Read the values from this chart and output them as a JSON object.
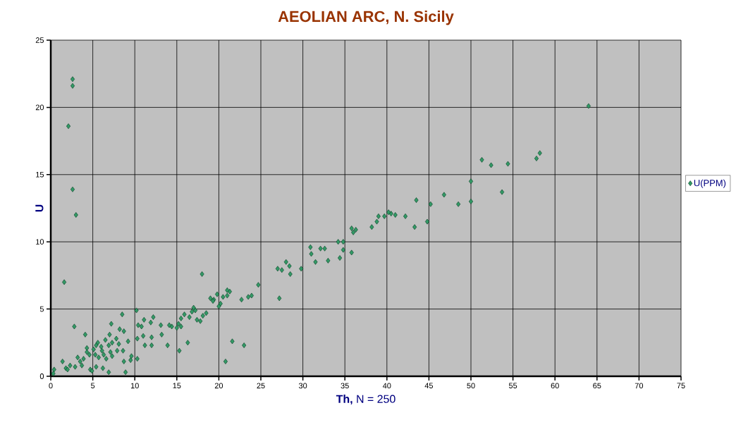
{
  "chart_data": {
    "type": "scatter",
    "title": "AEOLIAN ARC, N. Sicily",
    "xlabel": "**Th,**  N = 250",
    "ylabel": "U",
    "xlim": [
      0,
      75
    ],
    "xticks": [
      0,
      5,
      10,
      15,
      20,
      25,
      30,
      35,
      40,
      45,
      50,
      55,
      60,
      65,
      70,
      75
    ],
    "ylim": [
      0,
      25
    ],
    "yticks": [
      0,
      5,
      10,
      15,
      20,
      25
    ],
    "grid": true,
    "legend": "right",
    "marker": "diamond",
    "series": [
      {
        "name": "U(PPM)",
        "color": "#339966",
        "x": [
          2.6,
          2.6,
          2.1,
          2.6,
          3.0,
          1.6,
          2.8,
          64.0,
          58.2,
          57.8,
          54.4,
          51.3,
          52.4,
          53.7,
          50.0,
          50.0,
          48.5,
          46.8,
          45.2,
          44.8,
          43.5,
          43.3,
          42.2,
          41.0,
          40.5,
          40.2,
          39.7,
          39.0,
          38.8,
          38.2,
          36.3,
          36.0,
          35.8,
          35.8,
          34.8,
          34.8,
          34.4,
          34.2,
          33.0,
          32.6,
          32.1,
          31.5,
          31.0,
          30.9,
          29.8,
          28.5,
          28.4,
          28.0,
          27.5,
          27.0,
          27.2,
          24.7,
          23.9,
          23.5,
          22.7,
          21.3,
          21.0,
          21.0,
          20.5,
          20.2,
          20.0,
          19.8,
          19.4,
          19.0,
          19.3,
          18.5,
          18.1,
          18.0,
          17.8,
          17.4,
          17.2,
          17.0,
          16.8,
          16.5,
          16.3,
          15.9,
          15.5,
          15.5,
          15.2,
          15.3,
          15.0,
          14.4,
          14.1,
          13.9,
          23.0,
          21.6,
          20.8,
          10.2,
          8.5,
          12.2,
          11.1,
          4.1,
          7.2,
          11.9,
          13.1,
          10.4,
          8.2,
          8.7,
          7.0,
          10.8,
          13.2,
          11.0,
          12.0,
          10.3,
          9.2,
          6.5,
          7.8,
          5.6,
          11.2,
          12.0,
          4.3,
          5.1,
          6.1,
          7.1,
          7.9,
          3.2,
          4.6,
          5.7,
          6.6,
          9.6,
          9.5,
          10.3,
          8.7,
          1.4,
          2.3,
          1.8,
          2.9,
          3.7,
          4.7,
          5.4,
          6.2,
          6.9,
          8.9,
          0.4,
          0.3,
          4.9,
          2.0,
          3.5,
          3.9,
          5.3,
          6.3,
          7.3,
          8.6,
          4.3,
          6.0,
          6.9,
          7.3,
          8.1,
          5.4
        ],
        "values": [
          22.1,
          21.6,
          18.6,
          13.9,
          12.0,
          7.0,
          3.7,
          20.1,
          16.6,
          16.2,
          15.8,
          16.1,
          15.7,
          13.7,
          14.5,
          13.0,
          12.8,
          13.5,
          12.8,
          11.5,
          13.1,
          11.1,
          11.9,
          12.0,
          12.1,
          12.2,
          11.9,
          11.9,
          11.5,
          11.1,
          10.9,
          10.7,
          11.0,
          9.2,
          9.4,
          10.0,
          8.8,
          10.0,
          8.6,
          9.5,
          9.5,
          8.5,
          9.1,
          9.6,
          8.0,
          7.6,
          8.2,
          8.5,
          7.9,
          8.0,
          5.8,
          6.8,
          6.0,
          5.9,
          5.7,
          6.3,
          6.0,
          6.4,
          5.9,
          5.4,
          5.2,
          6.1,
          5.7,
          5.8,
          5.6,
          4.7,
          4.5,
          7.6,
          4.1,
          4.2,
          4.9,
          5.1,
          4.8,
          4.4,
          2.5,
          4.6,
          4.3,
          3.7,
          3.9,
          1.9,
          3.6,
          3.7,
          3.8,
          2.3,
          2.3,
          2.6,
          1.1,
          4.9,
          4.6,
          4.4,
          4.2,
          3.1,
          3.9,
          4.0,
          3.8,
          3.8,
          3.5,
          3.35,
          3.1,
          3.7,
          3.1,
          3.0,
          2.9,
          2.8,
          2.6,
          2.7,
          2.8,
          2.5,
          2.3,
          2.3,
          2.1,
          2.0,
          1.9,
          1.8,
          1.9,
          1.4,
          1.6,
          1.4,
          1.3,
          1.5,
          1.2,
          1.3,
          1.1,
          1.1,
          0.8,
          0.6,
          0.7,
          0.8,
          0.5,
          0.7,
          0.6,
          0.3,
          0.3,
          0.5,
          0.2,
          0.4,
          0.5,
          1.1,
          1.3,
          1.6,
          1.6,
          1.5,
          1.9,
          1.8,
          2.2,
          2.3,
          2.5,
          2.4,
          2.3
        ]
      }
    ]
  }
}
